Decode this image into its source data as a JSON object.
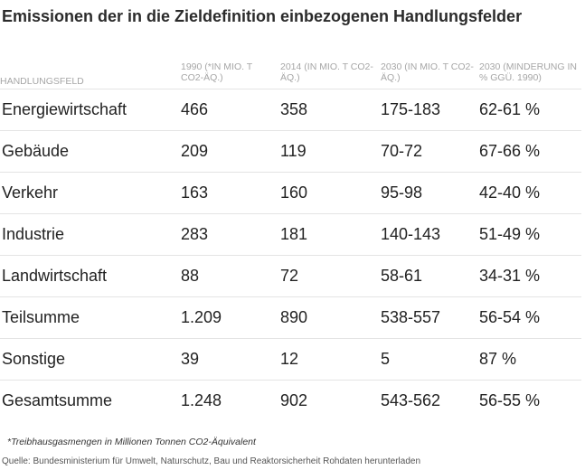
{
  "title": "Emissionen der in die Zieldefinition einbezogenen Handlungsfelder",
  "table": {
    "headers": [
      "Handlungsfeld",
      "1990 (*in Mio. t CO2-Äq.)",
      "2014 (in Mio. t CO2-Äq.)",
      "2030 (in Mio. t CO2-Äq.)",
      "2030 (Minderung in % ggü. 1990)"
    ],
    "rows": [
      [
        "Energiewirtschaft",
        "466",
        "358",
        "175-183",
        "62-61 %"
      ],
      [
        "Gebäude",
        "209",
        "119",
        "70-72",
        "67-66 %"
      ],
      [
        "Verkehr",
        "163",
        "160",
        "95-98",
        "42-40 %"
      ],
      [
        "Industrie",
        "283",
        "181",
        "140-143",
        "51-49 %"
      ],
      [
        "Landwirtschaft",
        "88",
        "72",
        "58-61",
        "34-31 %"
      ],
      [
        "Teilsumme",
        "1.209",
        "890",
        "538-557",
        "56-54 %"
      ],
      [
        "Sonstige",
        "39",
        "12",
        "5",
        "87 %"
      ],
      [
        "Gesamtsumme",
        "1.248",
        "902",
        "543-562",
        "56-55 %"
      ]
    ]
  },
  "footnote": "*Treibhausgasmengen in Millionen Tonnen CO2-Äquivalent",
  "source": "Quelle: Bundesministerium für Umwelt, Naturschutz, Bau und Reaktorsicherheit Rohdaten herunterladen"
}
